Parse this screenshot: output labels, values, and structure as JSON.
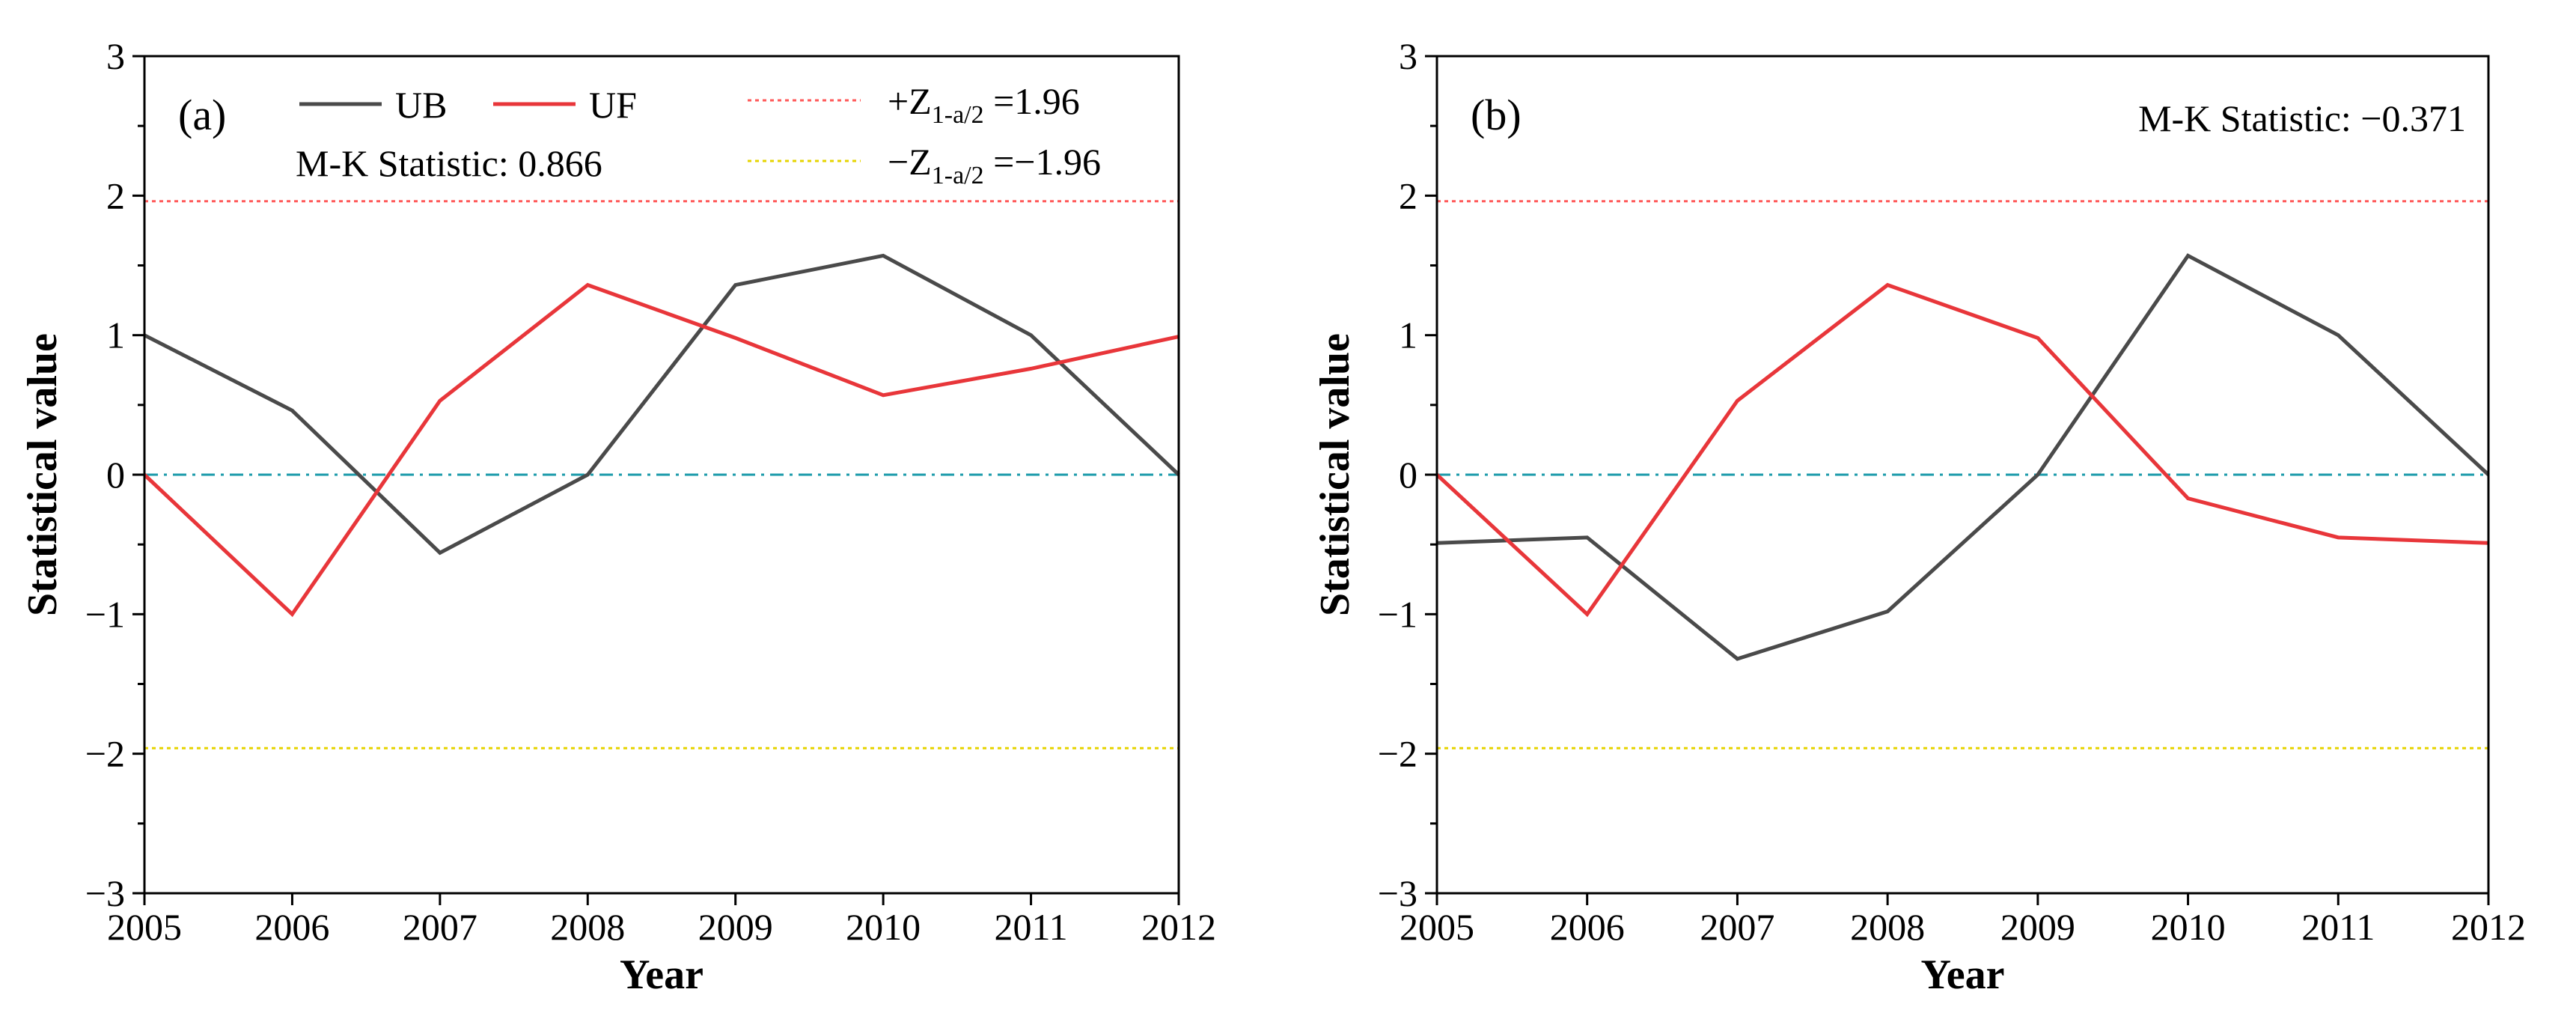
{
  "chart_data": [
    {
      "type": "line",
      "panel_label": "(a)",
      "xlabel": "Year",
      "ylabel": "Statistical value",
      "categories": [
        "2005",
        "2006",
        "2007",
        "2008",
        "2009",
        "2010",
        "2011",
        "2012"
      ],
      "x": [
        2005,
        2006,
        2007,
        2008,
        2009,
        2010,
        2011,
        2012
      ],
      "xlim": [
        2005,
        2012
      ],
      "ylim": [
        -3,
        3
      ],
      "yticks": [
        -3,
        -2,
        -1,
        0,
        1,
        2,
        3
      ],
      "ytick_labels": [
        "−3",
        "−2",
        "−1",
        "0",
        "1",
        "2",
        "3"
      ],
      "series": [
        {
          "name": "UB",
          "color": "#4a4a4a",
          "values": [
            1.0,
            0.46,
            -0.56,
            0.0,
            1.36,
            1.57,
            1.0,
            0.0
          ]
        },
        {
          "name": "UF",
          "color": "#e8363a",
          "values": [
            0.0,
            -1.0,
            0.53,
            1.36,
            0.98,
            0.57,
            0.76,
            0.99
          ]
        }
      ],
      "reference_lines": [
        {
          "name": "upper",
          "value": 1.96,
          "color": "#ff5a5a",
          "style": "dotted"
        },
        {
          "name": "lower",
          "value": -1.96,
          "color": "#e6d400",
          "style": "dotted"
        },
        {
          "name": "zero",
          "value": 0,
          "color": "#1a9aaa",
          "style": "dashdot"
        }
      ],
      "annotation": "M-K Statistic: 0.866",
      "legend": {
        "placement": "top",
        "entries": [
          {
            "label": "UB"
          },
          {
            "label": "UF"
          },
          {
            "prefix": "+Z",
            "sub": "1-a/2",
            "suffix": " =1.96"
          },
          {
            "prefix": "−Z",
            "sub": "1-a/2",
            "suffix": " =−1.96"
          }
        ]
      }
    },
    {
      "type": "line",
      "panel_label": "(b)",
      "xlabel": "Year",
      "ylabel": "Statistical value",
      "categories": [
        "2005",
        "2006",
        "2007",
        "2008",
        "2009",
        "2010",
        "2011",
        "2012"
      ],
      "x": [
        2005,
        2006,
        2007,
        2008,
        2009,
        2010,
        2011,
        2012
      ],
      "xlim": [
        2005,
        2012
      ],
      "ylim": [
        -3,
        3
      ],
      "yticks": [
        -3,
        -2,
        -1,
        0,
        1,
        2,
        3
      ],
      "ytick_labels": [
        "−3",
        "−2",
        "−1",
        "0",
        "1",
        "2",
        "3"
      ],
      "series": [
        {
          "name": "UB",
          "color": "#4a4a4a",
          "values": [
            -0.49,
            -0.45,
            -1.32,
            -0.98,
            0.0,
            1.57,
            1.0,
            0.0
          ]
        },
        {
          "name": "UF",
          "color": "#e8363a",
          "values": [
            0.0,
            -1.0,
            0.53,
            1.36,
            0.98,
            -0.17,
            -0.45,
            -0.49
          ]
        }
      ],
      "reference_lines": [
        {
          "name": "upper",
          "value": 1.96,
          "color": "#ff5a5a",
          "style": "dotted"
        },
        {
          "name": "lower",
          "value": -1.96,
          "color": "#e6d400",
          "style": "dotted"
        },
        {
          "name": "zero",
          "value": 0,
          "color": "#1a9aaa",
          "style": "dashdot"
        }
      ],
      "annotation": "M-K Statistic: −0.371"
    }
  ]
}
